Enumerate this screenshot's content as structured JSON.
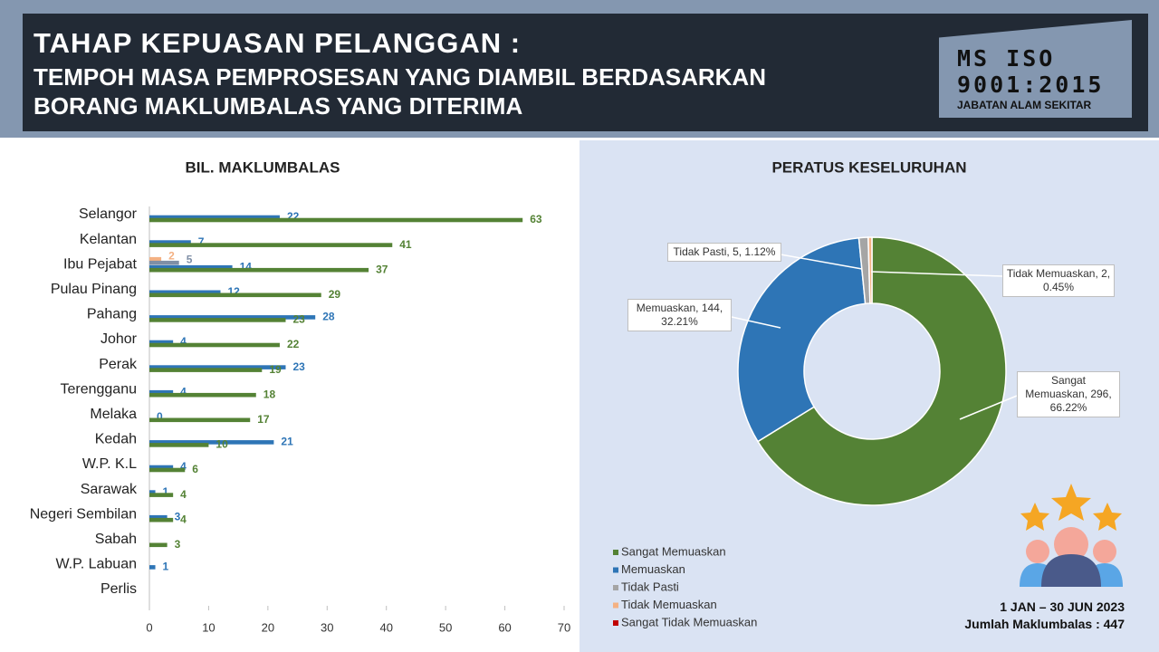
{
  "header": {
    "title": "TAHAP KEPUASAN PELANGGAN :",
    "subtitle_lines": [
      "TEMPOH MASA PEMPROSESAN YANG DIAMBIL BERDASARKAN",
      "BORANG MAKLUMBALAS YANG DITERIMA"
    ],
    "badge_lines": [
      "MS ISO",
      "9001:2015"
    ],
    "badge_org": "JABATAN ALAM SEKITAR"
  },
  "chart_data": [
    {
      "type": "bar",
      "orientation": "horizontal",
      "title": "BIL. MAKLUMBALAS",
      "categories": [
        "Selangor",
        "Kelantan",
        "Ibu Pejabat",
        "Pulau Pinang",
        "Pahang",
        "Johor",
        "Perak",
        "Terengganu",
        "Melaka",
        "Kedah",
        "W.P. K.L",
        "Sarawak",
        "Negeri Sembilan",
        "Sabah",
        "W.P. Labuan",
        "Perlis"
      ],
      "series": [
        {
          "name": "Tidak Memuaskan",
          "color": "#f4b183",
          "values": [
            null,
            null,
            2,
            null,
            null,
            null,
            null,
            null,
            null,
            null,
            null,
            null,
            null,
            null,
            null,
            null
          ]
        },
        {
          "name": "Tidak Pasti",
          "color": "#7f8fa6",
          "values": [
            null,
            null,
            5,
            null,
            null,
            null,
            null,
            null,
            null,
            null,
            null,
            null,
            null,
            null,
            null,
            null
          ]
        },
        {
          "name": "Memuaskan",
          "color": "#2e75b6",
          "values": [
            22,
            7,
            14,
            12,
            28,
            4,
            23,
            4,
            0,
            21,
            4,
            1,
            3,
            null,
            1,
            null
          ]
        },
        {
          "name": "Sangat Memuaskan",
          "color": "#548235",
          "values": [
            63,
            41,
            37,
            29,
            23,
            22,
            19,
            18,
            17,
            10,
            6,
            4,
            4,
            3,
            null,
            null
          ]
        }
      ],
      "xlim": [
        0,
        70
      ],
      "xticks": [
        0,
        10,
        20,
        30,
        40,
        50,
        60,
        70
      ],
      "grid": false
    },
    {
      "type": "donut",
      "title": "PERATUS KESELURUHAN",
      "categories": [
        "Sangat Memuaskan",
        "Memuaskan",
        "Tidak Pasti",
        "Tidak Memuaskan",
        "Sangat Tidak Memuaskan"
      ],
      "values": [
        296,
        144,
        5,
        2,
        0
      ],
      "value_labels": [
        "Sangat Memuaskan, 296, 66.22%",
        "Memuaskan, 144, 32.21%",
        "Tidak Pasti, 5, 1.12%",
        "Tidak Memuaskan, 2, 0.45%",
        null
      ],
      "colors": [
        "#548235",
        "#2e75b6",
        "#a5a5a5",
        "#f4b183",
        "#c00000"
      ],
      "legend": "bottom-left"
    }
  ],
  "footer": {
    "period": "1 JAN – 30 JUN 2023",
    "total": "Jumlah Maklumbalas : 447"
  }
}
